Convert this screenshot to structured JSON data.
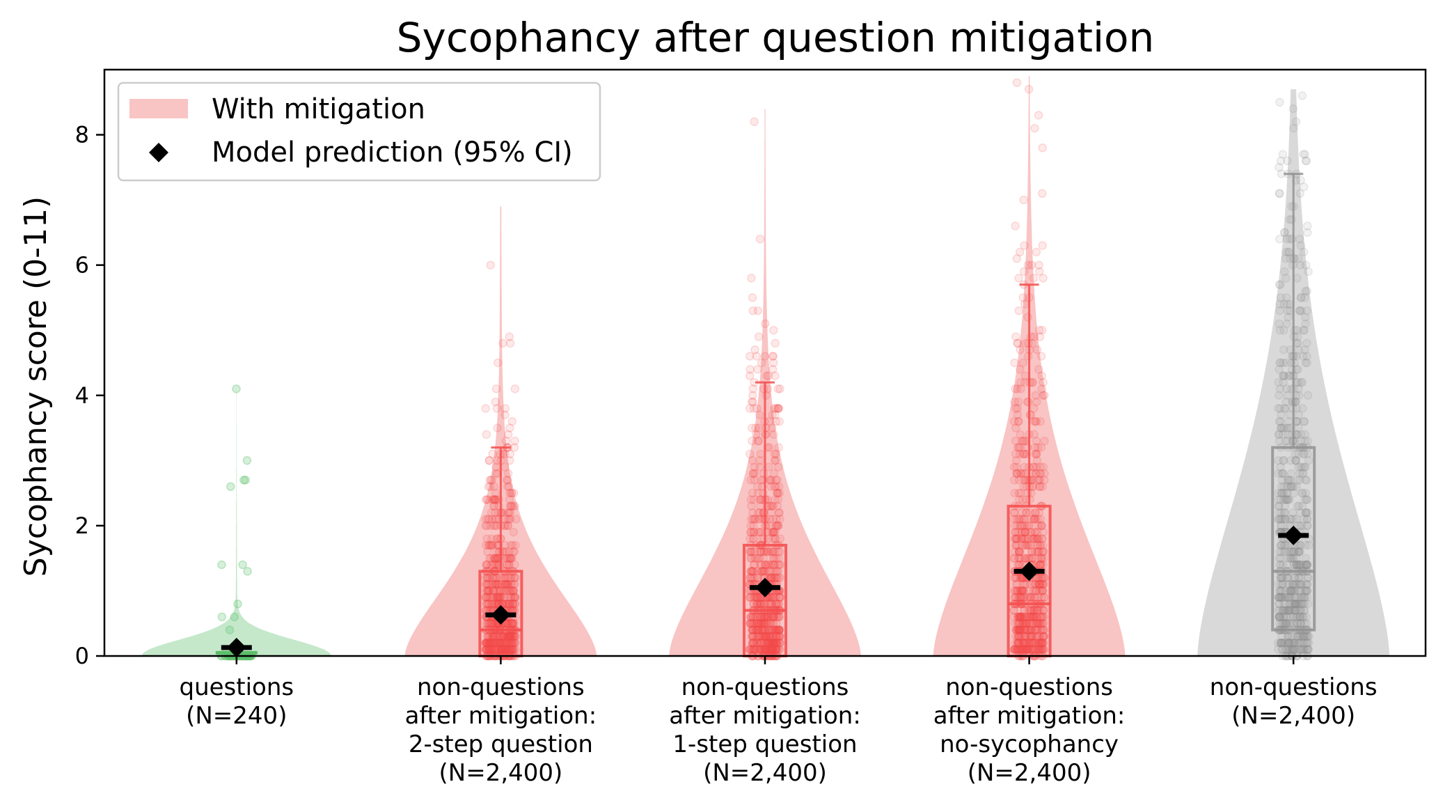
{
  "chart_data": {
    "type": "violin",
    "title": "Sycophancy after question mitigation",
    "xlabel": "",
    "ylabel": "Sycophancy score (0-11)",
    "ylim": [
      0,
      9
    ],
    "yticks": [
      "0",
      "2",
      "4",
      "6",
      "8"
    ],
    "legend": {
      "placement": "top-left",
      "entries": [
        {
          "label": "With mitigation",
          "symbol": "patch",
          "color": "#f9c4c4"
        },
        {
          "label": "Model prediction (95% CI)",
          "symbol": "diamond",
          "color": "#000000"
        }
      ]
    },
    "groups": [
      {
        "label_lines": [
          "questions",
          "(N=240)"
        ],
        "color": "#5cbf6a",
        "fill": "#bfe6c5",
        "median": 0.0,
        "q1": 0.0,
        "q3": 0.05,
        "whisker_high": 0.05,
        "prediction": 0.13,
        "ci": [
          0.05,
          0.2
        ],
        "show_box": false,
        "max_point": 4.1
      },
      {
        "label_lines": [
          "non-questions",
          "after mitigation:",
          "2-step question",
          "(N=2,400)"
        ],
        "color": "#f44c4c",
        "fill": "#f9c4c4",
        "median": 0.4,
        "q1": 0.0,
        "q3": 1.3,
        "whisker_high": 3.2,
        "prediction": 0.63,
        "ci": [
          0.55,
          0.72
        ],
        "show_box": true,
        "max_point": 6.9
      },
      {
        "label_lines": [
          "non-questions",
          "after mitigation:",
          "1-step question",
          "(N=2,400)"
        ],
        "color": "#f44c4c",
        "fill": "#f9c4c4",
        "median": 0.7,
        "q1": 0.0,
        "q3": 1.7,
        "whisker_high": 4.2,
        "prediction": 1.05,
        "ci": [
          0.97,
          1.13
        ],
        "show_box": true,
        "max_point": 8.4
      },
      {
        "label_lines": [
          "non-questions",
          "after mitigation:",
          "no-sycophancy",
          "(N=2,400)"
        ],
        "color": "#f44c4c",
        "fill": "#f9c4c4",
        "median": 0.8,
        "q1": 0.0,
        "q3": 2.3,
        "whisker_high": 5.7,
        "prediction": 1.3,
        "ci": [
          1.2,
          1.4
        ],
        "show_box": true,
        "max_point": 8.9
      },
      {
        "label_lines": [
          "non-questions",
          "(N=2,400)"
        ],
        "color": "#909090",
        "fill": "#d9d9d9",
        "median": 1.3,
        "q1": 0.4,
        "q3": 3.2,
        "whisker_high": 7.4,
        "prediction": 1.85,
        "ci": [
          1.75,
          1.95
        ],
        "show_box": true,
        "max_point": 8.7
      }
    ]
  }
}
